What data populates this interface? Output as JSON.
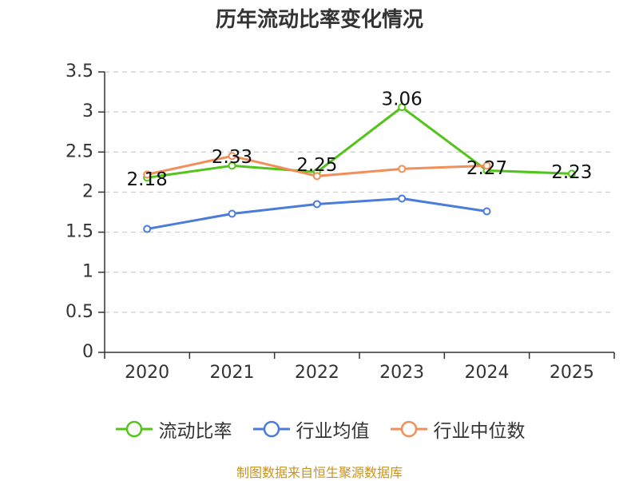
{
  "chart_data": {
    "type": "line",
    "title": "历年流动比率变化情况",
    "categories": [
      "2020",
      "2021",
      "2022",
      "2023",
      "2024",
      "2025"
    ],
    "ylim": [
      0,
      3.5
    ],
    "yticks": [
      "0",
      "0.5",
      "1",
      "1.5",
      "2",
      "2.5",
      "3",
      "3.5"
    ],
    "grid": true,
    "legend_position": "bottom",
    "series": [
      {
        "name": "流动比率",
        "color": "#52c41a",
        "values": [
          2.18,
          2.33,
          2.25,
          3.06,
          2.27,
          2.23
        ],
        "labels": [
          "2.18",
          "2.33",
          "2.25",
          "3.06",
          "2.27",
          "2.23"
        ]
      },
      {
        "name": "行业均值",
        "color": "#4a7cdb",
        "values": [
          1.54,
          1.73,
          1.85,
          1.92,
          1.76,
          null
        ]
      },
      {
        "name": "行业中位数",
        "color": "#f28e5a",
        "values": [
          2.22,
          2.45,
          2.2,
          2.29,
          2.33,
          null
        ]
      }
    ]
  },
  "source": {
    "text": "制图数据来自恒生聚源数据库",
    "color": "#c8931e"
  }
}
